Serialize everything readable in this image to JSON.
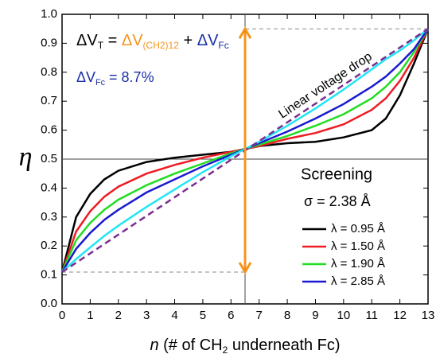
{
  "chart_data": {
    "type": "line",
    "ylabel": "η",
    "xlabel": [
      {
        "text": "n",
        "italic": true
      },
      {
        "text": " (# of CH"
      },
      {
        "text": "2",
        "sub": true
      },
      {
        "text": " underneath Fc)"
      }
    ],
    "xlim": [
      0,
      13
    ],
    "ylim": [
      0,
      1
    ],
    "xticks": [
      0,
      1,
      2,
      3,
      4,
      5,
      6,
      7,
      8,
      9,
      10,
      11,
      12,
      13
    ],
    "yticks": [
      {
        "value": 0,
        "label": "0.0"
      },
      {
        "value": 0.1,
        "label": "0.1"
      },
      {
        "value": 0.2,
        "label": "0.2"
      },
      {
        "value": 0.3,
        "label": "0.3"
      },
      {
        "value": 0.4,
        "label": "0.4"
      },
      {
        "value": 0.5,
        "label": "0.5"
      },
      {
        "value": 0.6,
        "label": "0.6"
      },
      {
        "value": 0.7,
        "label": "0.7"
      },
      {
        "value": 0.8,
        "label": "0.8"
      },
      {
        "value": 0.9,
        "label": "0.9"
      },
      {
        "value": 1,
        "label": "1.0"
      }
    ],
    "series": [
      {
        "name": "λ = 0.95 Å",
        "color": "#000000",
        "x": [
          0,
          0.5,
          1,
          1.5,
          2,
          3,
          4,
          5,
          6,
          6.5,
          7,
          8,
          9,
          10,
          11,
          11.5,
          12,
          12.5,
          13
        ],
        "values": [
          0.11,
          0.3,
          0.38,
          0.43,
          0.46,
          0.49,
          0.505,
          0.515,
          0.525,
          0.535,
          0.545,
          0.555,
          0.56,
          0.575,
          0.6,
          0.64,
          0.72,
          0.83,
          0.95
        ]
      },
      {
        "name": "λ = 1.50 Å",
        "color": "#ee1c24",
        "x": [
          0,
          0.5,
          1,
          1.5,
          2,
          3,
          4,
          5,
          6,
          6.5,
          7,
          8,
          9,
          10,
          11,
          11.5,
          12,
          12.5,
          13
        ],
        "values": [
          0.11,
          0.25,
          0.32,
          0.37,
          0.405,
          0.45,
          0.48,
          0.505,
          0.525,
          0.535,
          0.545,
          0.57,
          0.59,
          0.62,
          0.67,
          0.71,
          0.77,
          0.85,
          0.95
        ]
      },
      {
        "name": "λ = 1.90 Å",
        "color": "#22dd22",
        "x": [
          0,
          0.5,
          1,
          1.5,
          2,
          3,
          4,
          5,
          6,
          6.5,
          7,
          8,
          9,
          10,
          11,
          11.5,
          12,
          12.5,
          13
        ],
        "values": [
          0.11,
          0.22,
          0.28,
          0.325,
          0.36,
          0.41,
          0.45,
          0.485,
          0.52,
          0.535,
          0.55,
          0.58,
          0.615,
          0.655,
          0.71,
          0.75,
          0.8,
          0.87,
          0.95
        ]
      },
      {
        "name": "λ = 2.85 Å",
        "color": "#1a1ad0",
        "x": [
          0,
          0.5,
          1,
          1.5,
          2,
          3,
          4,
          5,
          6,
          6.5,
          7,
          8,
          9,
          10,
          11,
          11.5,
          12,
          12.5,
          13
        ],
        "values": [
          0.11,
          0.19,
          0.245,
          0.29,
          0.325,
          0.385,
          0.43,
          0.475,
          0.515,
          0.535,
          0.555,
          0.595,
          0.64,
          0.69,
          0.75,
          0.785,
          0.83,
          0.88,
          0.95
        ]
      },
      {
        "color": "#22e5f5",
        "x": [
          0,
          0.5,
          1,
          1.5,
          2,
          3,
          4,
          5,
          6,
          6.5,
          7,
          8,
          9,
          10,
          11,
          11.5,
          12,
          12.5,
          13
        ],
        "values": [
          0.11,
          0.155,
          0.195,
          0.235,
          0.27,
          0.335,
          0.395,
          0.455,
          0.51,
          0.535,
          0.56,
          0.615,
          0.675,
          0.74,
          0.81,
          0.845,
          0.875,
          0.91,
          0.95
        ]
      },
      {
        "color": "#7b2d8e",
        "dashed": true,
        "label": "Linear voltage drop",
        "x": [
          0,
          13
        ],
        "values": [
          0.11,
          0.95
        ]
      }
    ],
    "hline": 0.5,
    "vline": 6.5,
    "arrow": {
      "color": "#f7941d",
      "from": 0.11,
      "to": 0.95
    },
    "legend_title": "Screening",
    "legend_subtitle": "σ = 2.38 Å",
    "equation": [
      {
        "text": "ΔV"
      },
      {
        "text": "T",
        "sub": true
      },
      {
        "text": " = "
      },
      {
        "text": "ΔV",
        "color": "#f7941d"
      },
      {
        "text": "(CH2)12",
        "sub": true,
        "color": "#f7941d"
      },
      {
        "text": " + "
      },
      {
        "text": "ΔV",
        "color": "#1a2fa8"
      },
      {
        "text": "Fc",
        "sub": true,
        "color": "#1a2fa8"
      }
    ],
    "fc_share": [
      {
        "text": "ΔV",
        "color": "#1a2fa8"
      },
      {
        "text": "Fc",
        "sub": true,
        "color": "#1a2fa8"
      },
      {
        "text": " = 8.7%",
        "color": "#1a2fa8"
      }
    ]
  }
}
